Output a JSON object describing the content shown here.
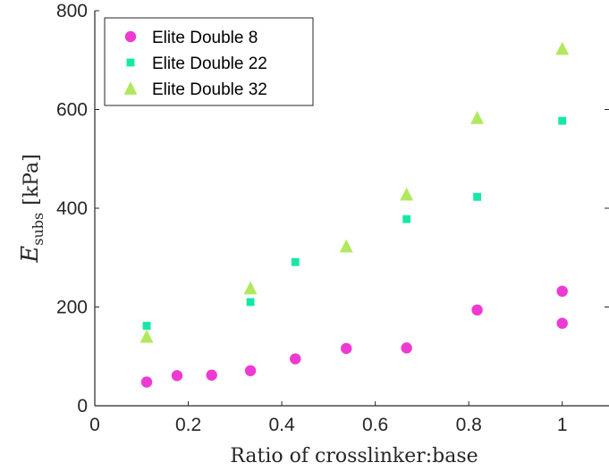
{
  "chart_data": {
    "type": "scatter",
    "title": "",
    "xlabel": "Ratio of crosslinker:base",
    "ylabel": {
      "symbol": "E",
      "subscript": "subs",
      "unit": "[kPa]"
    },
    "xlim": [
      0,
      1.1
    ],
    "ylim": [
      0,
      800
    ],
    "x_ticks": [
      0,
      0.2,
      0.4,
      0.6,
      0.8,
      1
    ],
    "x_tick_labels": [
      "0",
      "0.2",
      "0.4",
      "0.6",
      "0.8",
      "1"
    ],
    "y_ticks": [
      0,
      200,
      400,
      600,
      800
    ],
    "y_tick_labels": [
      "0",
      "200",
      "400",
      "600",
      "800"
    ],
    "grid": false,
    "legend_position": "top-left",
    "series": [
      {
        "name": "Elite Double 8",
        "marker": "circle",
        "color": "#ee3ad2",
        "points": [
          {
            "x": 0.111,
            "y": 48
          },
          {
            "x": 0.176,
            "y": 61
          },
          {
            "x": 0.25,
            "y": 62
          },
          {
            "x": 0.333,
            "y": 71
          },
          {
            "x": 0.429,
            "y": 95
          },
          {
            "x": 0.538,
            "y": 116
          },
          {
            "x": 0.667,
            "y": 117
          },
          {
            "x": 0.818,
            "y": 194
          },
          {
            "x": 1.0,
            "y": 232
          },
          {
            "x": 1.0,
            "y": 167
          }
        ]
      },
      {
        "name": "Elite Double 22",
        "marker": "square",
        "color": "#14e8a5",
        "points": [
          {
            "x": 0.111,
            "y": 162
          },
          {
            "x": 0.333,
            "y": 210
          },
          {
            "x": 0.429,
            "y": 291
          },
          {
            "x": 0.667,
            "y": 378
          },
          {
            "x": 0.818,
            "y": 423
          },
          {
            "x": 1.0,
            "y": 577
          }
        ]
      },
      {
        "name": "Elite Double 32",
        "marker": "triangle",
        "color": "#b1e85e",
        "points": [
          {
            "x": 0.111,
            "y": 140
          },
          {
            "x": 0.333,
            "y": 238
          },
          {
            "x": 0.538,
            "y": 323
          },
          {
            "x": 0.667,
            "y": 428
          },
          {
            "x": 0.818,
            "y": 583
          },
          {
            "x": 1.0,
            "y": 723
          }
        ]
      }
    ]
  }
}
